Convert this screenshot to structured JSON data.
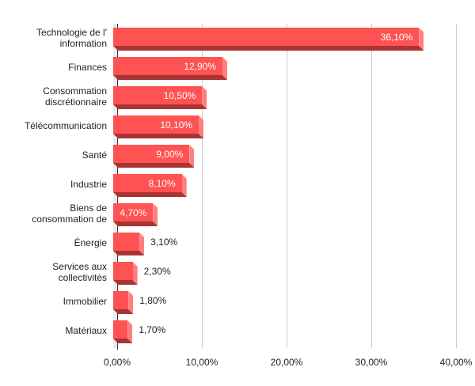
{
  "chart_data": {
    "type": "bar",
    "orientation": "horizontal",
    "style": "3d",
    "title": "",
    "xlabel": "",
    "ylabel": "",
    "categories": [
      "Technologie de l' information",
      "Finances",
      "Consommation discrétionnaire",
      "Télécommunication",
      "Santé",
      "Industrie",
      "Biens de consommation de",
      "Énergie",
      "Services aux collectivités",
      "Immobilier",
      "Matériaux"
    ],
    "category_lines": [
      [
        "Technologie de l'",
        "information"
      ],
      [
        "Finances"
      ],
      [
        "Consommation",
        "discrétionnaire"
      ],
      [
        "Télécommunication"
      ],
      [
        "Santé"
      ],
      [
        "Industrie"
      ],
      [
        "Biens de",
        "consommation de"
      ],
      [
        "Énergie"
      ],
      [
        "Services aux",
        "collectivités"
      ],
      [
        "Immobilier"
      ],
      [
        "Matériaux"
      ]
    ],
    "values": [
      36.1,
      12.9,
      10.5,
      10.1,
      9.0,
      8.1,
      4.7,
      3.1,
      2.3,
      1.8,
      1.7
    ],
    "value_labels": [
      "36,10%",
      "12,90%",
      "10,50%",
      "10,10%",
      "9,00%",
      "8,10%",
      "4,70%",
      "3,10%",
      "2,30%",
      "1,80%",
      "1,70%"
    ],
    "xlim": [
      0,
      40
    ],
    "x_ticks": [
      "0,00%",
      "10,00%",
      "20,00%",
      "30,00%",
      "40,00%"
    ],
    "grid": "vertical",
    "legend": "none",
    "colors": {
      "bar": "#ff5252",
      "bar_bottom": "#a83434",
      "bar_side": "#ff7f7f",
      "grid": "#cccccc"
    }
  }
}
